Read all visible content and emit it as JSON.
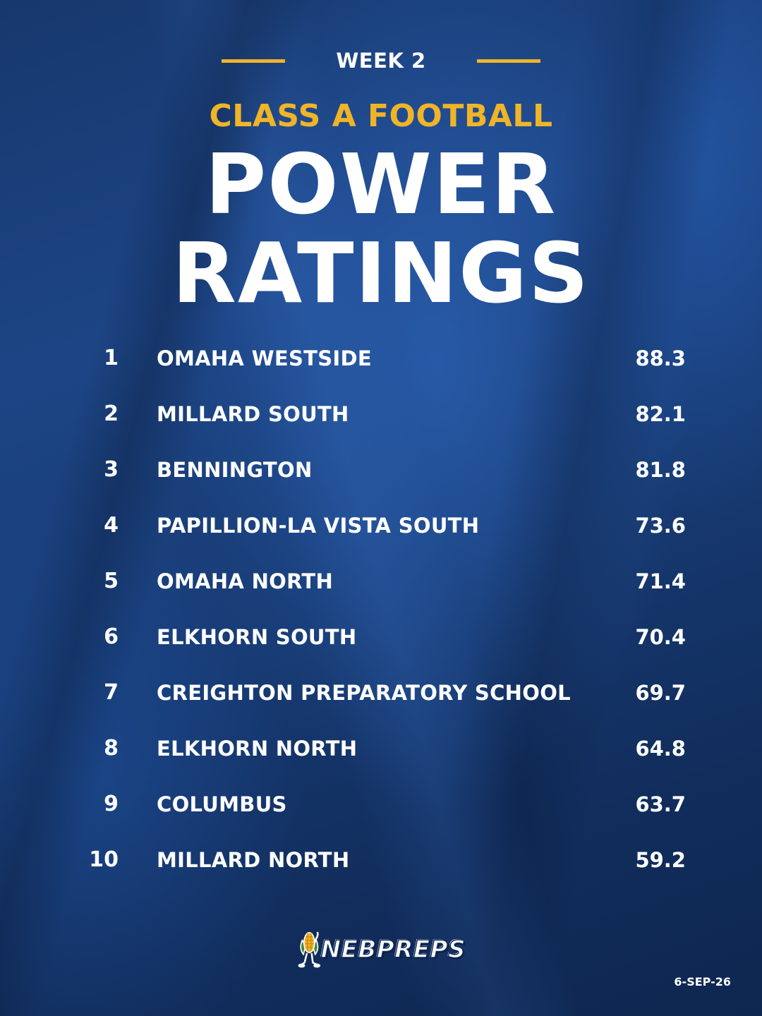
{
  "header": {
    "week": "WEEK 2",
    "class_title": "CLASS A FOOTBALL",
    "title_line1": "POWER",
    "title_line2": "RATINGS"
  },
  "colors": {
    "accent": "#f0b429",
    "background": "#173a72",
    "text": "#ffffff"
  },
  "rankings": [
    {
      "rank": "1",
      "team": "OMAHA WESTSIDE",
      "score": "88.3"
    },
    {
      "rank": "2",
      "team": "MILLARD SOUTH",
      "score": "82.1"
    },
    {
      "rank": "3",
      "team": "BENNINGTON",
      "score": "81.8"
    },
    {
      "rank": "4",
      "team": "PAPILLION-LA VISTA SOUTH",
      "score": "73.6"
    },
    {
      "rank": "5",
      "team": "OMAHA NORTH",
      "score": "71.4"
    },
    {
      "rank": "6",
      "team": "ELKHORN SOUTH",
      "score": "70.4"
    },
    {
      "rank": "7",
      "team": "CREIGHTON PREPARATORY SCHOOL",
      "score": "69.7"
    },
    {
      "rank": "8",
      "team": "ELKHORN NORTH",
      "score": "64.8"
    },
    {
      "rank": "9",
      "team": "COLUMBUS",
      "score": "63.7"
    },
    {
      "rank": "10",
      "team": "MILLARD NORTH",
      "score": "59.2"
    }
  ],
  "footer": {
    "logo_text": "NEBPREPS",
    "logo_icon": "corn-mascot-icon",
    "date": "6-SEP-26"
  }
}
